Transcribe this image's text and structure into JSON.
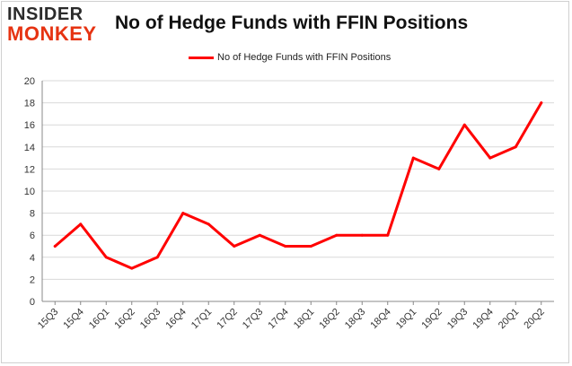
{
  "logo": {
    "line1": "INSIDER",
    "line2": "MONKEY"
  },
  "colors": {
    "series": "#ff0000",
    "grid": "#d9d9d9",
    "axis": "#888888",
    "logo_accent": "#e63312"
  },
  "chart_data": {
    "type": "line",
    "title": "No of Hedge Funds with FFIN Positions",
    "xlabel": "",
    "ylabel": "",
    "ylim": [
      0,
      20
    ],
    "yticks": [
      0,
      2,
      4,
      6,
      8,
      10,
      12,
      14,
      16,
      18,
      20
    ],
    "grid": true,
    "legend_position": "top-center",
    "categories": [
      "15Q3",
      "15Q4",
      "16Q1",
      "16Q2",
      "16Q3",
      "16Q4",
      "17Q1",
      "17Q2",
      "17Q3",
      "17Q4",
      "18Q1",
      "18Q2",
      "18Q3",
      "18Q4",
      "19Q1",
      "19Q2",
      "19Q3",
      "19Q4",
      "20Q1",
      "20Q2"
    ],
    "series": [
      {
        "name": "No of Hedge Funds with FFIN Positions",
        "values": [
          5,
          7,
          4,
          3,
          4,
          8,
          7,
          5,
          6,
          5,
          5,
          6,
          6,
          6,
          13,
          12,
          16,
          13,
          14,
          18
        ]
      }
    ]
  }
}
